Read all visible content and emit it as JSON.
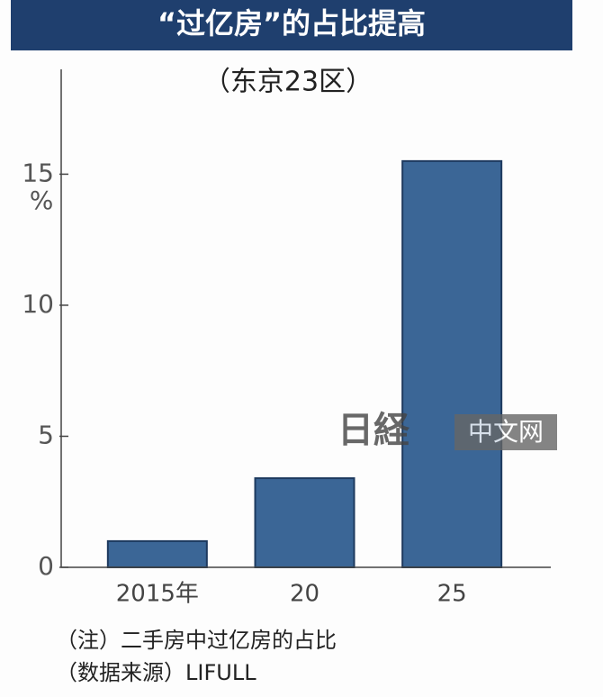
{
  "chart_data": {
    "type": "bar",
    "title": "“过亿房”的占比提高",
    "subtitle": "（东京23区）",
    "y_unit": "%",
    "categories": [
      "2015年",
      "20",
      "25"
    ],
    "values": [
      1.0,
      3.4,
      15.5
    ],
    "color": "#3b6696",
    "ylim": [
      0,
      19
    ],
    "yticks": [
      0,
      5,
      10,
      15
    ],
    "grid": false,
    "notes": [
      "（注）二手房中过亿房的占比",
      "（数据来源）LIFULL"
    ],
    "watermark": {
      "logo": "日経",
      "text": "中文网"
    }
  }
}
